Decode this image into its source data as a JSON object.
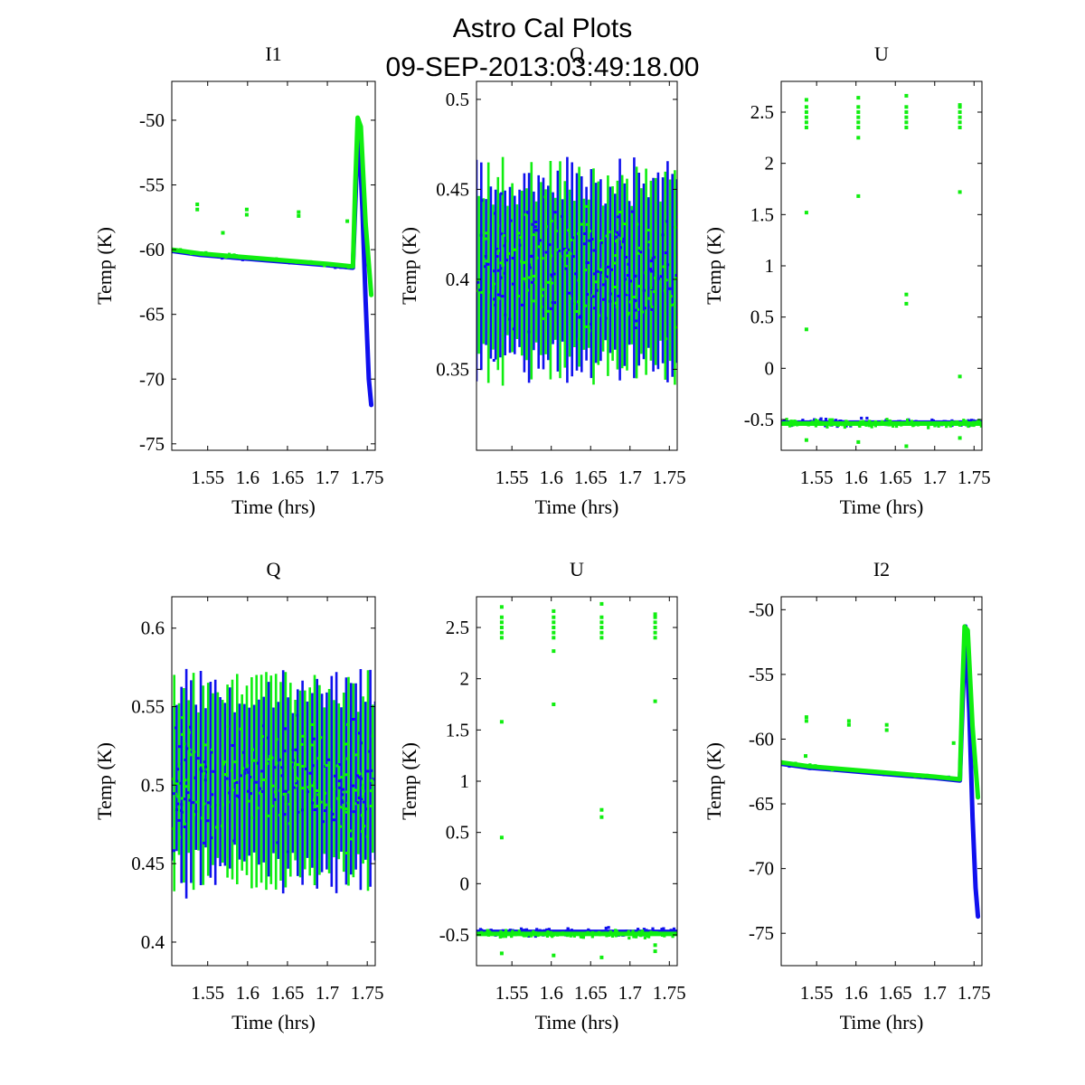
{
  "figure": {
    "title_line1": "Astro Cal Plots",
    "title_line2": "09-SEP-2013:03:49:18.00"
  },
  "colors": {
    "series_a": "#1010ee",
    "series_b": "#10ee10"
  },
  "chart_data": [
    {
      "type": "scatter",
      "title": "I1",
      "xlabel": "Time (hrs)",
      "ylabel": "Temp (K)",
      "xlim": [
        1.505,
        1.76
      ],
      "ylim": [
        -75.5,
        -47
      ],
      "xticks": [
        1.55,
        1.6,
        1.65,
        1.7,
        1.75
      ],
      "xtick_labels": [
        "1.55",
        "1.6",
        "1.65",
        "1.7",
        "1.75"
      ],
      "yticks": [
        -75,
        -70,
        -65,
        -60,
        -55,
        -50
      ],
      "ytick_labels": [
        "-75",
        "-70",
        "-65",
        "-60",
        "-55",
        "-50"
      ],
      "series": [
        {
          "name": "blue",
          "color": "#1010ee",
          "x": [
            1.505,
            1.54,
            1.58,
            1.62,
            1.66,
            1.7,
            1.732,
            1.739,
            1.744,
            1.748,
            1.752,
            1.755
          ],
          "y": [
            -60.1,
            -60.4,
            -60.6,
            -60.8,
            -61.0,
            -61.2,
            -61.4,
            -50.0,
            -57.0,
            -64.0,
            -70.0,
            -72.0
          ]
        },
        {
          "name": "green",
          "color": "#10ee10",
          "x": [
            1.505,
            1.54,
            1.58,
            1.62,
            1.66,
            1.7,
            1.732,
            1.735,
            1.738,
            1.742,
            1.748,
            1.755
          ],
          "y": [
            -60.0,
            -60.3,
            -60.5,
            -60.7,
            -60.9,
            -61.1,
            -61.3,
            -55.0,
            -49.8,
            -50.5,
            -58.0,
            -63.5
          ]
        },
        {
          "name": "green-outliers",
          "color": "#10ee10",
          "x": [
            1.537,
            1.537,
            1.569,
            1.599,
            1.599,
            1.664,
            1.664,
            1.725
          ],
          "y": [
            -56.5,
            -56.9,
            -58.7,
            -56.9,
            -57.3,
            -57.1,
            -57.4,
            -57.8
          ]
        }
      ],
      "bands": []
    },
    {
      "type": "scatter",
      "title": "Q",
      "xlabel": "Time (hrs)",
      "ylabel": "Temp (K)",
      "xlim": [
        1.505,
        1.76
      ],
      "ylim": [
        0.305,
        0.51
      ],
      "xticks": [
        1.55,
        1.6,
        1.65,
        1.7,
        1.75
      ],
      "xtick_labels": [
        "1.55",
        "1.6",
        "1.65",
        "1.7",
        "1.75"
      ],
      "yticks": [
        0.35,
        0.4,
        0.45,
        0.5
      ],
      "ytick_labels": [
        "0.35",
        "0.4",
        "0.45",
        "0.5"
      ],
      "series": [],
      "bands": [
        {
          "center": 0.404,
          "core": 0.05,
          "spread": 0.09,
          "start_color": "#1010ee",
          "end_color": "#10ee10"
        }
      ]
    },
    {
      "type": "scatter",
      "title": "U",
      "xlabel": "Time (hrs)",
      "ylabel": "Temp (K)",
      "xlim": [
        1.505,
        1.76
      ],
      "ylim": [
        -0.8,
        2.8
      ],
      "xticks": [
        1.55,
        1.6,
        1.65,
        1.7,
        1.75
      ],
      "xtick_labels": [
        "1.55",
        "1.6",
        "1.65",
        "1.7",
        "1.75"
      ],
      "yticks": [
        -0.5,
        0,
        0.5,
        1,
        1.5,
        2,
        2.5
      ],
      "ytick_labels": [
        "-0.5",
        "0",
        "0.5",
        "1",
        "1.5",
        "2",
        "2.5"
      ],
      "series": [
        {
          "name": "blue",
          "color": "#1010ee",
          "x": [
            1.505,
            1.55,
            1.6,
            1.65,
            1.7,
            1.76
          ],
          "y": [
            -0.53,
            -0.53,
            -0.53,
            -0.53,
            -0.53,
            -0.53
          ]
        },
        {
          "name": "green",
          "color": "#10ee10",
          "x": [
            1.505,
            1.55,
            1.6,
            1.65,
            1.7,
            1.76
          ],
          "y": [
            -0.54,
            -0.54,
            -0.54,
            -0.54,
            -0.54,
            -0.54
          ]
        },
        {
          "name": "cal-spikes",
          "color": "#10ee10",
          "x": [
            1.537,
            1.537,
            1.537,
            1.537,
            1.537,
            1.537,
            1.537,
            1.537,
            1.537,
            1.603,
            1.603,
            1.603,
            1.603,
            1.603,
            1.603,
            1.603,
            1.603,
            1.603,
            1.664,
            1.664,
            1.664,
            1.664,
            1.664,
            1.664,
            1.664,
            1.664,
            1.664,
            1.732,
            1.732,
            1.732,
            1.732,
            1.732,
            1.732,
            1.732,
            1.732,
            1.732
          ],
          "y": [
            2.35,
            2.4,
            2.45,
            2.5,
            2.55,
            2.62,
            1.52,
            0.38,
            -0.7,
            2.35,
            2.4,
            2.45,
            2.5,
            2.55,
            2.64,
            1.68,
            2.25,
            -0.72,
            2.35,
            2.4,
            2.45,
            2.5,
            2.55,
            2.66,
            0.72,
            0.63,
            -0.76,
            2.35,
            2.4,
            2.45,
            2.5,
            2.55,
            2.57,
            1.72,
            -0.08,
            -0.68
          ]
        }
      ],
      "bands": []
    },
    {
      "type": "scatter",
      "title": "Q",
      "xlabel": "Time (hrs)",
      "ylabel": "Temp (K)",
      "xlim": [
        1.505,
        1.76
      ],
      "ylim": [
        0.385,
        0.62
      ],
      "xticks": [
        1.55,
        1.6,
        1.65,
        1.7,
        1.75
      ],
      "xtick_labels": [
        "1.55",
        "1.6",
        "1.65",
        "1.7",
        "1.75"
      ],
      "yticks": [
        0.4,
        0.45,
        0.5,
        0.55,
        0.6
      ],
      "ytick_labels": [
        "0.4",
        "0.45",
        "0.5",
        "0.55",
        "0.6"
      ],
      "series": [],
      "bands": [
        {
          "center": 0.503,
          "core": 0.057,
          "spread": 0.1,
          "start_color": "#1010ee",
          "end_color": "#10ee10"
        }
      ]
    },
    {
      "type": "scatter",
      "title": "U",
      "xlabel": "Time (hrs)",
      "ylabel": "Temp (K)",
      "xlim": [
        1.505,
        1.76
      ],
      "ylim": [
        -0.8,
        2.8
      ],
      "xticks": [
        1.55,
        1.6,
        1.65,
        1.7,
        1.75
      ],
      "xtick_labels": [
        "1.55",
        "1.6",
        "1.65",
        "1.7",
        "1.75"
      ],
      "yticks": [
        -0.5,
        0,
        0.5,
        1,
        1.5,
        2,
        2.5
      ],
      "ytick_labels": [
        "-0.5",
        "0",
        "0.5",
        "1",
        "1.5",
        "2",
        "2.5"
      ],
      "series": [
        {
          "name": "blue",
          "color": "#1010ee",
          "x": [
            1.505,
            1.55,
            1.6,
            1.65,
            1.7,
            1.76
          ],
          "y": [
            -0.47,
            -0.47,
            -0.47,
            -0.47,
            -0.47,
            -0.47
          ]
        },
        {
          "name": "green",
          "color": "#10ee10",
          "x": [
            1.505,
            1.55,
            1.6,
            1.65,
            1.7,
            1.76
          ],
          "y": [
            -0.49,
            -0.49,
            -0.49,
            -0.49,
            -0.49,
            -0.49
          ]
        },
        {
          "name": "cal-spikes",
          "color": "#10ee10",
          "x": [
            1.537,
            1.537,
            1.537,
            1.537,
            1.537,
            1.537,
            1.537,
            1.537,
            1.537,
            1.603,
            1.603,
            1.603,
            1.603,
            1.603,
            1.603,
            1.603,
            1.603,
            1.603,
            1.664,
            1.664,
            1.664,
            1.664,
            1.664,
            1.664,
            1.664,
            1.664,
            1.664,
            1.732,
            1.732,
            1.732,
            1.732,
            1.732,
            1.732,
            1.732,
            1.732,
            1.732
          ],
          "y": [
            2.4,
            2.45,
            2.5,
            2.55,
            2.6,
            2.7,
            1.58,
            0.45,
            -0.68,
            2.4,
            2.45,
            2.5,
            2.55,
            2.6,
            2.66,
            1.75,
            2.27,
            -0.7,
            2.4,
            2.45,
            2.5,
            2.55,
            2.6,
            2.73,
            0.72,
            0.65,
            -0.72,
            2.4,
            2.45,
            2.5,
            2.55,
            2.6,
            2.63,
            1.78,
            -0.66,
            -0.6
          ]
        }
      ],
      "bands": []
    },
    {
      "type": "scatter",
      "title": "I2",
      "xlabel": "Time (hrs)",
      "ylabel": "Temp (K)",
      "xlim": [
        1.505,
        1.76
      ],
      "ylim": [
        -77.5,
        -49
      ],
      "xticks": [
        1.55,
        1.6,
        1.65,
        1.7,
        1.75
      ],
      "xtick_labels": [
        "1.55",
        "1.6",
        "1.65",
        "1.7",
        "1.75"
      ],
      "yticks": [
        -75,
        -70,
        -65,
        -60,
        -55,
        -50
      ],
      "ytick_labels": [
        "-75",
        "-70",
        "-65",
        "-60",
        "-55",
        "-50"
      ],
      "series": [
        {
          "name": "blue",
          "color": "#1010ee",
          "x": [
            1.505,
            1.54,
            1.58,
            1.62,
            1.66,
            1.7,
            1.732,
            1.739,
            1.744,
            1.748,
            1.752,
            1.755
          ],
          "y": [
            -61.9,
            -62.2,
            -62.4,
            -62.6,
            -62.8,
            -63.0,
            -63.2,
            -51.3,
            -58.0,
            -66.0,
            -71.5,
            -73.7
          ]
        },
        {
          "name": "green",
          "color": "#10ee10",
          "x": [
            1.505,
            1.54,
            1.58,
            1.62,
            1.66,
            1.7,
            1.732,
            1.735,
            1.738,
            1.742,
            1.748,
            1.755
          ],
          "y": [
            -61.8,
            -62.1,
            -62.3,
            -62.5,
            -62.7,
            -62.9,
            -63.1,
            -56.5,
            -51.3,
            -51.6,
            -59.0,
            -64.5
          ]
        },
        {
          "name": "green-outliers",
          "color": "#10ee10",
          "x": [
            1.537,
            1.537,
            1.536,
            1.591,
            1.591,
            1.639,
            1.639,
            1.724
          ],
          "y": [
            -58.3,
            -58.6,
            -61.3,
            -58.6,
            -58.9,
            -58.9,
            -59.3,
            -60.3
          ]
        }
      ],
      "bands": []
    }
  ]
}
